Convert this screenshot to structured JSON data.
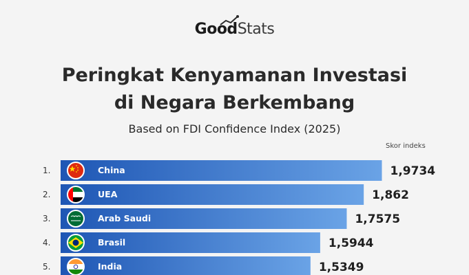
{
  "brand": {
    "part1": "Good",
    "part2": "Stats"
  },
  "title_line1": "Peringkat Kenyamanan Investasi",
  "title_line2": "di Negara Berkembang",
  "subtitle": "Based on FDI Confidence Index (2025)",
  "score_label": "Skor indeks",
  "colors": {
    "bar_dark": "#1e56b4",
    "bar_light": "#5b93dc",
    "text": "#222222"
  },
  "chart_data": {
    "type": "bar",
    "orientation": "horizontal",
    "title": "Peringkat Kenyamanan Investasi di Negara Berkembang",
    "subtitle": "Based on FDI Confidence Index (2025)",
    "value_label": "Skor indeks",
    "categories": [
      "China",
      "UEA",
      "Arab Saudi",
      "Brasil",
      "India"
    ],
    "ranks": [
      "1.",
      "2.",
      "3.",
      "4.",
      "5."
    ],
    "values": [
      1.9734,
      1.862,
      1.7575,
      1.5944,
      1.5349
    ],
    "value_labels": [
      "1,9734",
      "1,862",
      "1,7575",
      "1,5944",
      "1,5349"
    ],
    "icons": [
      "china-flag-icon",
      "uae-flag-icon",
      "saudi-flag-icon",
      "brazil-flag-icon",
      "india-flag-icon"
    ]
  }
}
